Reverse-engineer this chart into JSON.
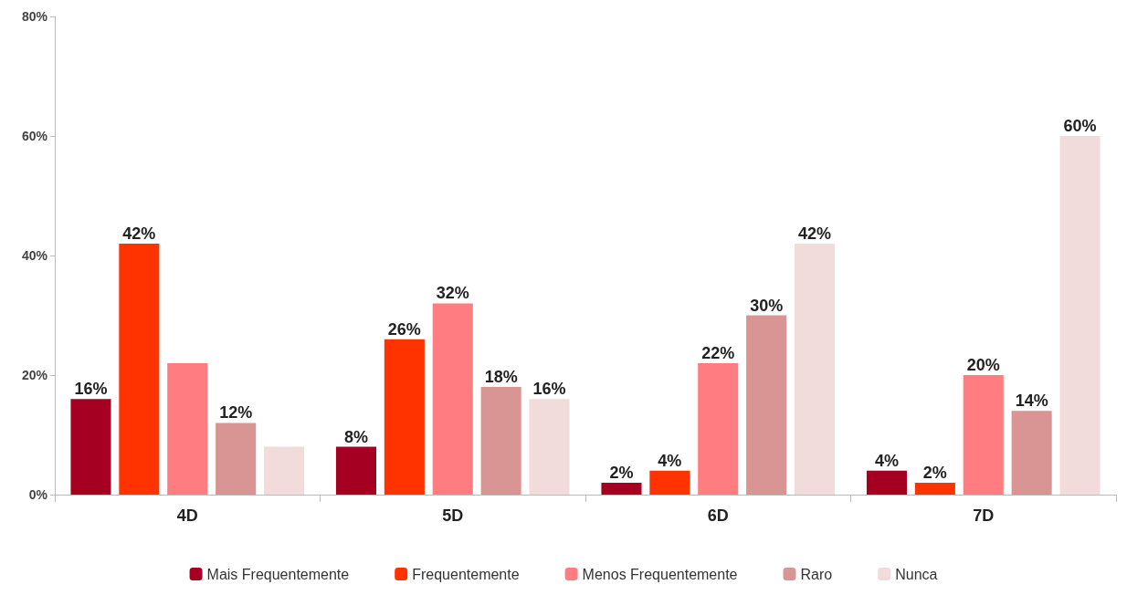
{
  "chart_data": {
    "type": "bar",
    "categories": [
      "4D",
      "5D",
      "6D",
      "7D"
    ],
    "series": [
      {
        "name": "Mais Frequentemente",
        "color": "#a50021",
        "values": [
          16,
          8,
          2,
          4
        ],
        "value_labels": [
          "16%",
          "8%",
          "2%",
          "4%"
        ]
      },
      {
        "name": "Frequentemente",
        "color": "#ff3300",
        "values": [
          42,
          26,
          4,
          2
        ],
        "value_labels": [
          "42%",
          "26%",
          "4%",
          "2%"
        ]
      },
      {
        "name": "Menos Frequentemente",
        "color": "#ff7c80",
        "values": [
          22,
          32,
          22,
          20
        ],
        "value_labels": [
          null,
          "32%",
          "22%",
          "20%"
        ]
      },
      {
        "name": "Raro",
        "color": "#d99594",
        "values": [
          12,
          18,
          30,
          14
        ],
        "value_labels": [
          "12%",
          "18%",
          "30%",
          "14%"
        ]
      },
      {
        "name": "Nunca",
        "color": "#f2dcdb",
        "values": [
          8,
          16,
          42,
          60
        ],
        "value_labels": [
          null,
          "16%",
          "42%",
          "60%"
        ]
      }
    ],
    "ylim": [
      0,
      80
    ],
    "yticks": [
      {
        "value": 0,
        "label": "0%"
      },
      {
        "value": 20,
        "label": "20%"
      },
      {
        "value": 40,
        "label": "40%"
      },
      {
        "value": 60,
        "label": "60%"
      },
      {
        "value": 80,
        "label": "80%"
      }
    ],
    "grid": false,
    "legend": "bottom"
  }
}
